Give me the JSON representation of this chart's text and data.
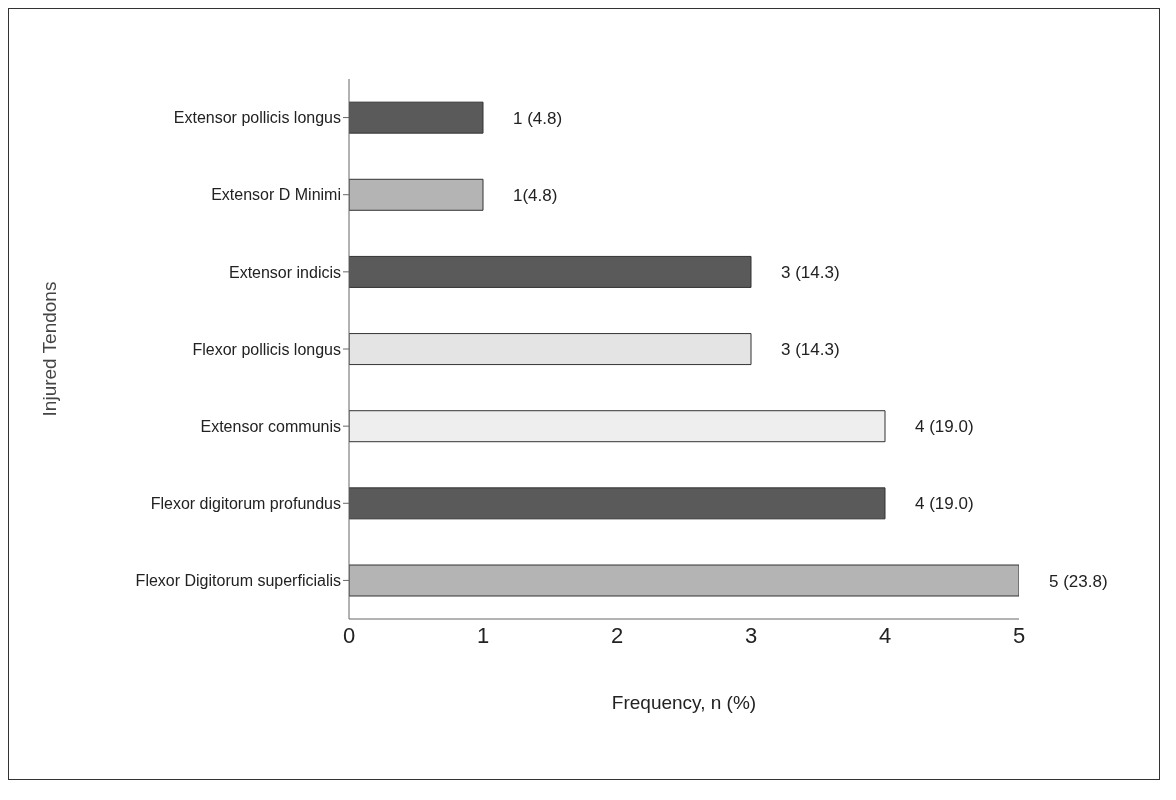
{
  "chart_data": {
    "type": "bar",
    "orientation": "horizontal",
    "xlabel": "Frequency, n (%)",
    "ylabel": "Injured Tendons",
    "categories": [
      "Extensor pollicis longus",
      "Extensor D Minimi",
      "Extensor indicis",
      "Flexor pollicis longus",
      "Extensor communis",
      "Flexor digitorum profundus",
      "Flexor Digitorum superficialis"
    ],
    "values": [
      1,
      1,
      3,
      3,
      4,
      4,
      5
    ],
    "colors": [
      "#5a5a5a",
      "#b4b4b4",
      "#5a5a5a",
      "#e4e4e4",
      "#eeeeee",
      "#5a5a5a",
      "#b4b4b4"
    ],
    "value_labels": [
      "1 (4.8)",
      "1(4.8)",
      "3 (14.3)",
      "3 (14.3)",
      "4 (19.0)",
      "4 (19.0)",
      "5 (23.8)"
    ],
    "xlim": [
      0,
      5
    ],
    "xticks": [
      0,
      1,
      2,
      3,
      4,
      5
    ]
  }
}
